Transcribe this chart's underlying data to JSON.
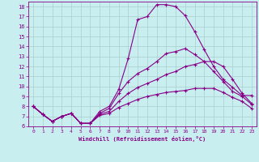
{
  "xlabel": "Windchill (Refroidissement éolien,°C)",
  "bg_color": "#c8eef0",
  "line_color": "#880088",
  "grid_color": "#aacccc",
  "xlim": [
    -0.5,
    23.5
  ],
  "ylim": [
    6,
    18.5
  ],
  "yticks": [
    6,
    7,
    8,
    9,
    10,
    11,
    12,
    13,
    14,
    15,
    16,
    17,
    18
  ],
  "xticks": [
    0,
    1,
    2,
    3,
    4,
    5,
    6,
    7,
    8,
    9,
    10,
    11,
    12,
    13,
    14,
    15,
    16,
    17,
    18,
    19,
    20,
    21,
    22,
    23
  ],
  "lines": [
    {
      "x": [
        0,
        1,
        2,
        3,
        4,
        5,
        6,
        7,
        8,
        9,
        10,
        11,
        12,
        13,
        14,
        15,
        16,
        17,
        18,
        19,
        20,
        21,
        22,
        23
      ],
      "y": [
        8.0,
        7.2,
        6.5,
        7.0,
        7.3,
        6.3,
        6.3,
        7.5,
        8.0,
        9.7,
        12.8,
        16.7,
        17.0,
        18.2,
        18.2,
        18.0,
        17.1,
        15.5,
        13.7,
        12.0,
        10.7,
        9.9,
        9.1,
        9.1
      ]
    },
    {
      "x": [
        0,
        1,
        2,
        3,
        4,
        5,
        6,
        7,
        8,
        9,
        10,
        11,
        12,
        13,
        14,
        15,
        16,
        17,
        18,
        19,
        20,
        21,
        22,
        23
      ],
      "y": [
        8.0,
        7.2,
        6.5,
        7.0,
        7.3,
        6.3,
        6.3,
        7.3,
        7.8,
        9.3,
        10.5,
        11.3,
        11.8,
        12.5,
        13.3,
        13.5,
        13.8,
        13.2,
        12.5,
        11.5,
        10.5,
        9.5,
        9.0,
        8.2
      ]
    },
    {
      "x": [
        0,
        1,
        2,
        3,
        4,
        5,
        6,
        7,
        8,
        9,
        10,
        11,
        12,
        13,
        14,
        15,
        16,
        17,
        18,
        19,
        20,
        21,
        22,
        23
      ],
      "y": [
        8.0,
        7.2,
        6.5,
        7.0,
        7.3,
        6.3,
        6.3,
        7.2,
        7.5,
        8.5,
        9.3,
        9.9,
        10.3,
        10.7,
        11.2,
        11.5,
        12.0,
        12.2,
        12.5,
        12.5,
        12.0,
        10.7,
        9.3,
        8.3
      ]
    },
    {
      "x": [
        0,
        1,
        2,
        3,
        4,
        5,
        6,
        7,
        8,
        9,
        10,
        11,
        12,
        13,
        14,
        15,
        16,
        17,
        18,
        19,
        20,
        21,
        22,
        23
      ],
      "y": [
        8.0,
        7.2,
        6.5,
        7.0,
        7.3,
        6.3,
        6.3,
        7.1,
        7.3,
        7.9,
        8.3,
        8.7,
        9.0,
        9.2,
        9.4,
        9.5,
        9.6,
        9.8,
        9.8,
        9.8,
        9.4,
        8.9,
        8.5,
        7.8
      ]
    }
  ]
}
